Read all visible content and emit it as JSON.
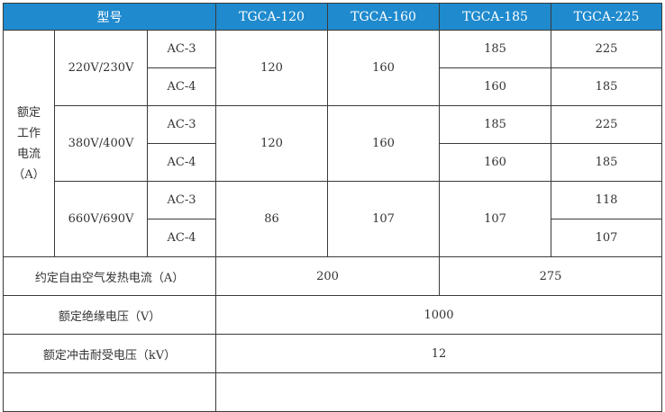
{
  "header": {
    "model_label": "型号",
    "models": [
      "TGCA-120",
      "TGCA-160",
      "TGCA-185",
      "TGCA-225"
    ]
  },
  "rated_current": {
    "label_lines": [
      "额定",
      "工作",
      "电流",
      "（A）"
    ],
    "groups": [
      {
        "voltage": "220V/230V",
        "ac3": "AC-3",
        "ac4": "AC-4",
        "tgca120": "120",
        "tgca160": "160",
        "tgca185_ac3": "185",
        "tgca185_ac4": "160",
        "tgca225_ac3": "225",
        "tgca225_ac4": "185"
      },
      {
        "voltage": "380V/400V",
        "ac3": "AC-3",
        "ac4": "AC-4",
        "tgca120": "120",
        "tgca160": "160",
        "tgca185_ac3": "185",
        "tgca185_ac4": "160",
        "tgca225_ac3": "225",
        "tgca225_ac4": "185"
      },
      {
        "voltage": "660V/690V",
        "ac3": "AC-3",
        "ac4": "AC-4",
        "tgca120": "86",
        "tgca160": "107",
        "tgca185": "107",
        "tgca225_ac3": "118",
        "tgca225_ac4": "107"
      }
    ]
  },
  "thermal_current": {
    "label": "约定自由空气发热电流（A）",
    "value_a": "200",
    "value_b": "275"
  },
  "insulation_voltage": {
    "label": "额定绝缘电压（V）",
    "value": "1000"
  },
  "impulse_voltage": {
    "label": "额定冲击耐受电压（kV）",
    "value": "12"
  }
}
